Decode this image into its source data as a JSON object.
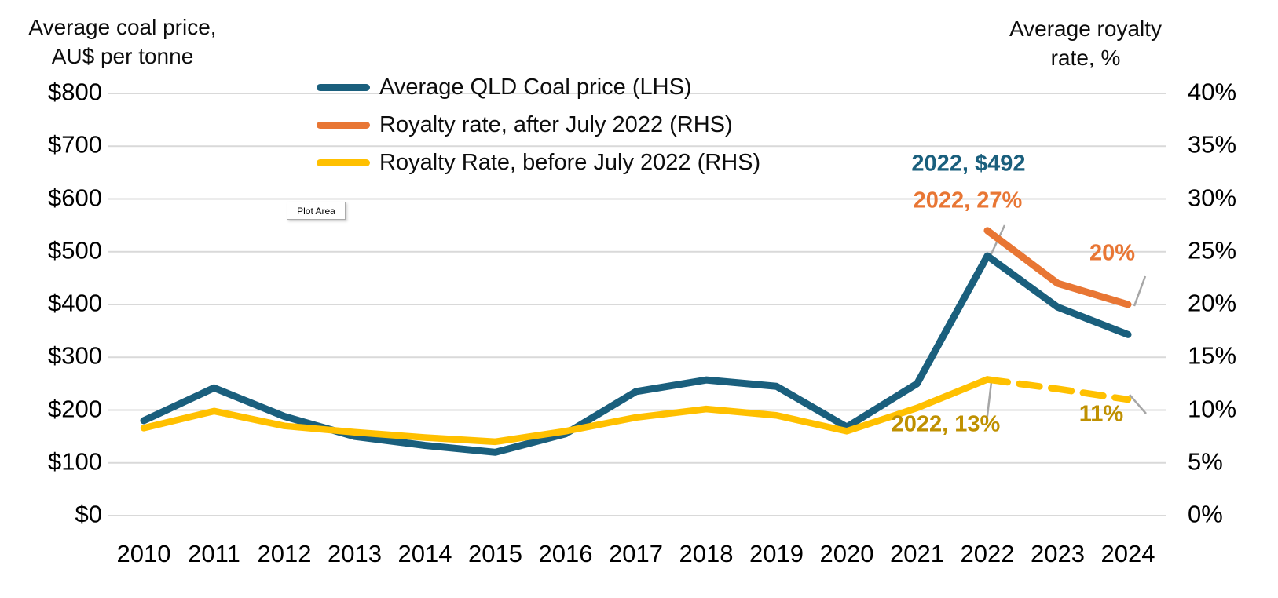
{
  "chart_data": {
    "type": "line",
    "categories": [
      "2010",
      "2011",
      "2012",
      "2013",
      "2014",
      "2015",
      "2016",
      "2017",
      "2018",
      "2019",
      "2020",
      "2021",
      "2022",
      "2023",
      "2024"
    ],
    "series": [
      {
        "name": "Average QLD Coal price (LHS)",
        "axis": "left",
        "color": "#1A5F7D",
        "style": "solid",
        "values": [
          180,
          242,
          188,
          150,
          133,
          120,
          155,
          235,
          257,
          245,
          168,
          250,
          492,
          395,
          343
        ]
      },
      {
        "name": "Royalty rate, after July 2022 (RHS)",
        "axis": "right",
        "color": "#E87634",
        "style": "solid",
        "values": [
          null,
          null,
          null,
          null,
          null,
          null,
          null,
          null,
          null,
          null,
          null,
          null,
          27,
          22,
          20
        ]
      },
      {
        "name": "Royalty Rate, before July 2022 (RHS)",
        "axis": "right",
        "color": "#FFC000",
        "style": "solid_then_dashed",
        "dash_from_index": 12,
        "values": [
          8.3,
          9.9,
          8.5,
          7.9,
          7.4,
          7.0,
          8.0,
          9.3,
          10.1,
          9.5,
          8.0,
          10.2,
          12.9,
          12.0,
          11.0
        ]
      }
    ],
    "left_axis": {
      "title_line1": "Average coal price,",
      "title_line2": "AU$ per tonne",
      "ticks": [
        "$800",
        "$700",
        "$600",
        "$500",
        "$400",
        "$300",
        "$200",
        "$100",
        "$0"
      ],
      "range": [
        0,
        800
      ],
      "grid": true
    },
    "right_axis": {
      "title_line1": "Average royalty",
      "title_line2": "rate, %",
      "ticks": [
        "40%",
        "35%",
        "30%",
        "25%",
        "20%",
        "15%",
        "10%",
        "5%",
        "0%"
      ],
      "range": [
        0,
        40
      ]
    },
    "annotations": [
      {
        "id": "price-2022",
        "text": "2022, $492",
        "color": "#1A5F7D"
      },
      {
        "id": "after-2022",
        "text": "2022, 27%",
        "color": "#E87634"
      },
      {
        "id": "after-2024",
        "text": "20%",
        "color": "#E87634"
      },
      {
        "id": "before-2022",
        "text": "2022, 13%",
        "color": "#BF9000"
      },
      {
        "id": "before-2024",
        "text": "11%",
        "color": "#BF9000"
      }
    ],
    "legend_position": "top-left-inside"
  },
  "plot_area_tooltip": "Plot Area",
  "colors": {
    "gridline": "#D9D9D9",
    "leader_line": "#A6A6A6",
    "coal_price_line": "#1A5F7D",
    "royalty_after_line": "#E87634",
    "royalty_before_line": "#FFC000",
    "gold_label": "#BF9000",
    "text": "#000000"
  }
}
